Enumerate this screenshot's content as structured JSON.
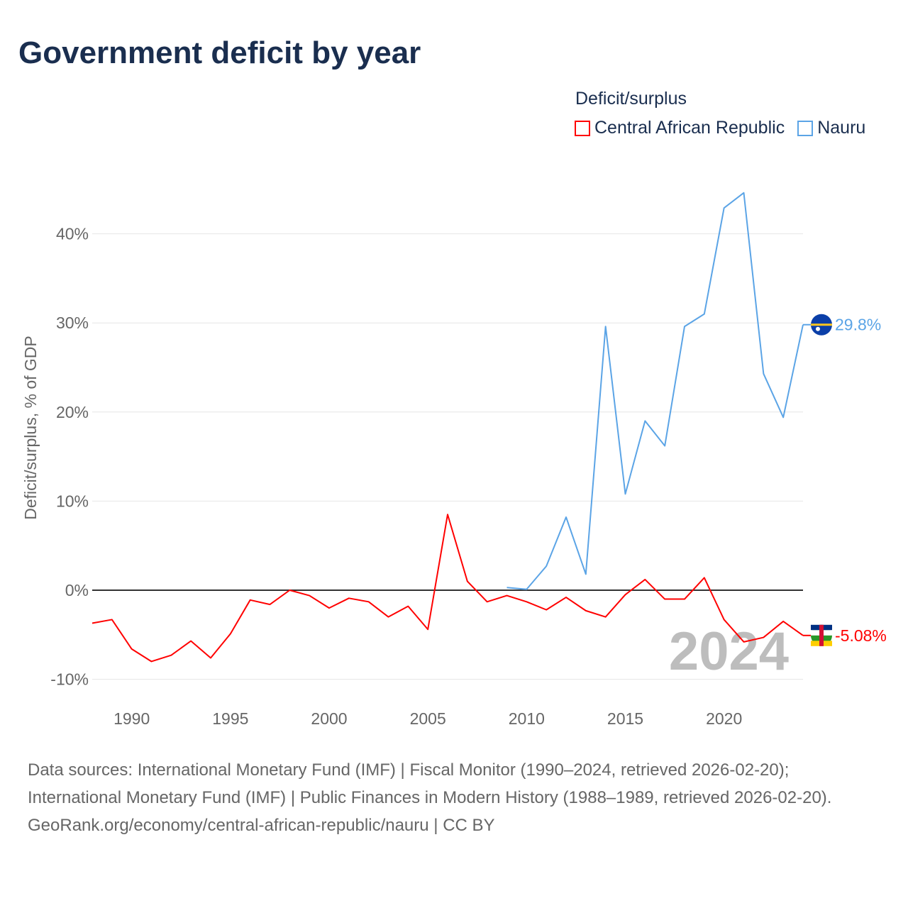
{
  "title": "Government deficit by year",
  "legend": {
    "title": "Deficit/surplus",
    "items": [
      {
        "label": "Central African Republic",
        "color": "#ff0000"
      },
      {
        "label": "Nauru",
        "color": "#5ba4e6"
      }
    ]
  },
  "footer": {
    "sources": "Data sources: International Monetary Fund (IMF) | Fiscal Monitor (1990–2024, retrieved 2026-02-20); International Monetary Fund (IMF) | Public Finances in Modern History (1988–1989, retrieved 2026-02-20).",
    "credit": "GeoRank.org/economy/central-african-republic/nauru | CC BY"
  },
  "chart_data": {
    "type": "line",
    "ylabel": "Deficit/surplus, % of GDP",
    "xlabel": "",
    "year_label": "2024",
    "xlim": [
      1988,
      2024
    ],
    "ylim": [
      -12,
      47
    ],
    "yticks": [
      -10,
      0,
      10,
      20,
      30,
      40
    ],
    "ytick_labels": [
      "-10%",
      "0%",
      "10%",
      "20%",
      "30%",
      "40%"
    ],
    "xticks": [
      1990,
      1995,
      2000,
      2005,
      2010,
      2015,
      2020
    ],
    "grid": true,
    "series": [
      {
        "name": "Central African Republic",
        "color": "#ff0000",
        "end_label": "-5.08%",
        "x": [
          1988,
          1989,
          1990,
          1991,
          1992,
          1993,
          1994,
          1995,
          1996,
          1997,
          1998,
          1999,
          2000,
          2001,
          2002,
          2003,
          2004,
          2005,
          2006,
          2007,
          2008,
          2009,
          2010,
          2011,
          2012,
          2013,
          2014,
          2015,
          2016,
          2017,
          2018,
          2019,
          2020,
          2021,
          2022,
          2023,
          2024
        ],
        "y": [
          -3.7,
          -3.3,
          -6.6,
          -8.0,
          -7.3,
          -5.7,
          -7.6,
          -4.9,
          -1.1,
          -1.6,
          0.0,
          -0.6,
          -2.0,
          -0.9,
          -1.3,
          -3.0,
          -1.8,
          -4.4,
          8.5,
          1.0,
          -1.3,
          -0.6,
          -1.3,
          -2.2,
          -0.8,
          -2.3,
          -3.0,
          -0.5,
          1.2,
          -1.0,
          -1.0,
          1.4,
          -3.3,
          -5.8,
          -5.3,
          -3.5,
          -5.08
        ]
      },
      {
        "name": "Nauru",
        "color": "#5ba4e6",
        "end_label": "29.8%",
        "x": [
          2009,
          2010,
          2011,
          2012,
          2013,
          2014,
          2015,
          2016,
          2017,
          2018,
          2019,
          2020,
          2021,
          2022,
          2023,
          2024
        ],
        "y": [
          0.3,
          0.1,
          2.7,
          8.2,
          1.8,
          29.6,
          10.8,
          19.0,
          16.2,
          29.6,
          31.0,
          42.9,
          44.6,
          24.3,
          19.4,
          29.8
        ]
      }
    ]
  }
}
